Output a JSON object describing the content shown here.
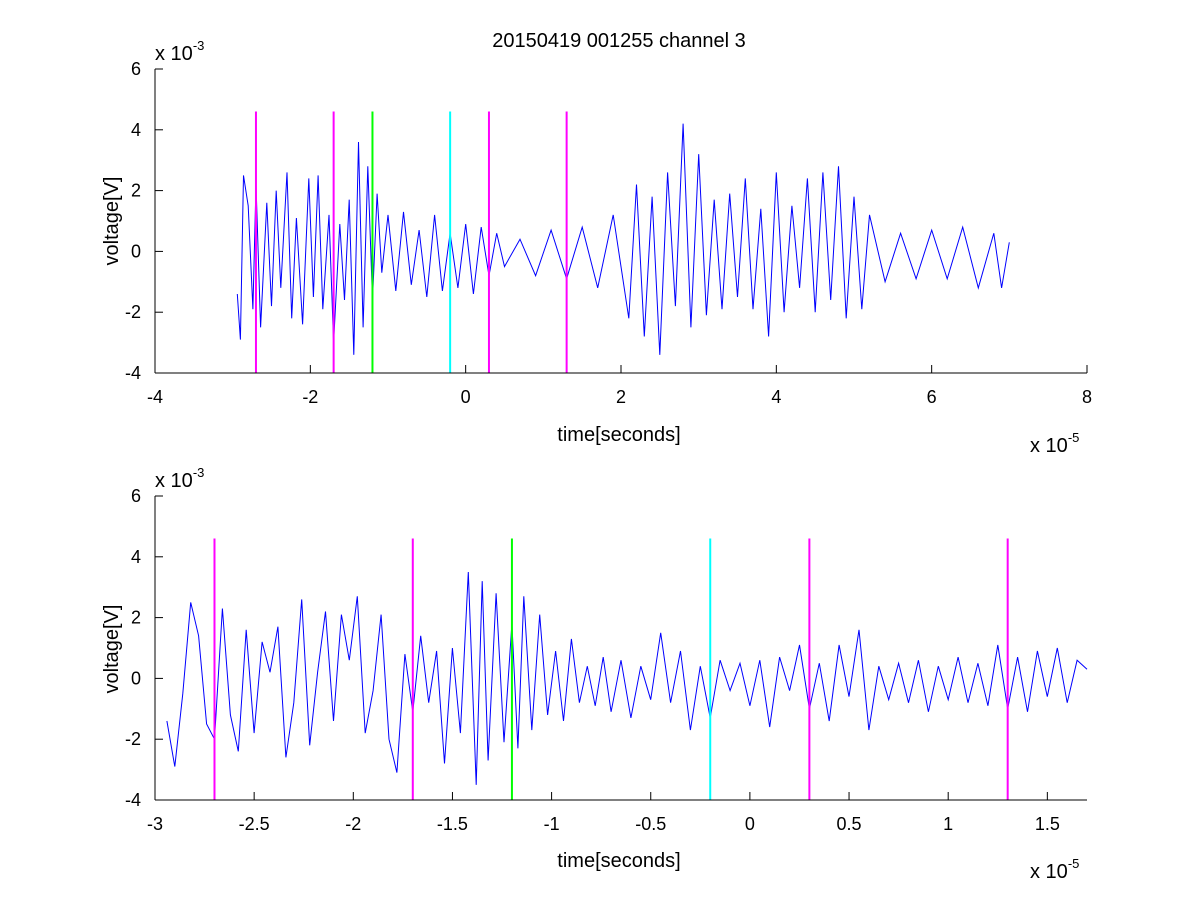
{
  "chart_data": [
    {
      "type": "line",
      "title": "20150419 001255 channel 3",
      "xlabel": "time[seconds]",
      "ylabel": "voltage[V]",
      "xlim": [
        -4e-05,
        8e-05
      ],
      "ylim": [
        -0.004,
        0.006
      ],
      "x_ticks": [
        -4e-05,
        -2e-05,
        0,
        2e-05,
        4e-05,
        6e-05,
        8e-05
      ],
      "x_tick_labels": [
        "-4",
        "-2",
        "0",
        "2",
        "4",
        "6",
        "8"
      ],
      "y_ticks": [
        -0.004,
        -0.002,
        0,
        0.002,
        0.004,
        0.006
      ],
      "y_tick_labels": [
        "-4",
        "-2",
        "0",
        "2",
        "4",
        "6"
      ],
      "x_exponent": {
        "base": "x 10",
        "power": "-5"
      },
      "y_exponent": {
        "base": "x 10",
        "power": "-3"
      },
      "grid": false,
      "series": [
        {
          "color": "#0000ff",
          "x_start": -2.94e-05,
          "x_end": 7e-05,
          "x": [
            -2.94e-05,
            -2.9e-05,
            -2.86e-05,
            -2.8e-05,
            -2.74e-05,
            -2.7e-05,
            -2.64e-05,
            -2.56e-05,
            -2.5e-05,
            -2.44e-05,
            -2.38e-05,
            -2.3e-05,
            -2.24e-05,
            -2.18e-05,
            -2.1e-05,
            -2.02e-05,
            -1.96e-05,
            -1.9e-05,
            -1.84e-05,
            -1.76e-05,
            -1.7e-05,
            -1.62e-05,
            -1.56e-05,
            -1.5e-05,
            -1.44e-05,
            -1.38e-05,
            -1.32e-05,
            -1.26e-05,
            -1.2e-05,
            -1.14e-05,
            -1.08e-05,
            -1e-05,
            -9e-06,
            -8e-06,
            -7e-06,
            -6e-06,
            -5e-06,
            -4e-06,
            -3e-06,
            -2e-06,
            -1e-06,
            0,
            1e-06,
            2e-06,
            3e-06,
            4e-06,
            5e-06,
            7e-06,
            9e-06,
            1.1e-05,
            1.3e-05,
            1.5e-05,
            1.7e-05,
            1.9e-05,
            2.1e-05,
            2.2e-05,
            2.3e-05,
            2.4e-05,
            2.5e-05,
            2.6e-05,
            2.7e-05,
            2.8e-05,
            2.9e-05,
            3e-05,
            3.1e-05,
            3.2e-05,
            3.3e-05,
            3.4e-05,
            3.5e-05,
            3.6e-05,
            3.7e-05,
            3.8e-05,
            3.9e-05,
            4e-05,
            4.1e-05,
            4.2e-05,
            4.3e-05,
            4.4e-05,
            4.5e-05,
            4.6e-05,
            4.7e-05,
            4.8e-05,
            4.9e-05,
            5e-05,
            5.1e-05,
            5.2e-05,
            5.4e-05,
            5.6e-05,
            5.8e-05,
            6e-05,
            6.2e-05,
            6.4e-05,
            6.6e-05,
            6.8e-05,
            6.9e-05,
            7e-05
          ],
          "y": [
            -0.0014,
            -0.0029,
            0.0025,
            0.0015,
            -0.0019,
            0.0022,
            -0.0025,
            0.0016,
            -0.0018,
            0.002,
            -0.0012,
            0.0026,
            -0.0022,
            0.0011,
            -0.0024,
            0.0024,
            -0.0015,
            0.0025,
            -0.0019,
            0.0012,
            -0.003,
            0.0009,
            -0.0016,
            0.0017,
            -0.0034,
            0.0036,
            -0.0025,
            0.0028,
            -0.0016,
            0.0019,
            -0.0007,
            0.0012,
            -0.0013,
            0.0013,
            -0.0011,
            0.0007,
            -0.0015,
            0.0012,
            -0.0013,
            0.0006,
            -0.0012,
            0.0009,
            -0.0014,
            0.0008,
            -0.0008,
            0.0006,
            -0.0005,
            0.0004,
            -0.0008,
            0.0007,
            -0.0009,
            0.0008,
            -0.0012,
            0.0012,
            -0.0022,
            0.0022,
            -0.0028,
            0.0018,
            -0.0034,
            0.0026,
            -0.0018,
            0.0042,
            -0.0025,
            0.0032,
            -0.0021,
            0.0017,
            -0.0019,
            0.0019,
            -0.0015,
            0.0024,
            -0.0019,
            0.0014,
            -0.0028,
            0.0026,
            -0.002,
            0.0015,
            -0.0012,
            0.0024,
            -0.002,
            0.0026,
            -0.0016,
            0.0028,
            -0.0022,
            0.0018,
            -0.0019,
            0.0012,
            -0.001,
            0.0006,
            -0.0009,
            0.0007,
            -0.0009,
            0.0008,
            -0.0012,
            0.0006,
            -0.0012,
            0.0003
          ]
        }
      ],
      "markers": [
        {
          "x": -2.7e-05,
          "color": "#ff00ff"
        },
        {
          "x": -1.7e-05,
          "color": "#ff00ff"
        },
        {
          "x": -1.2e-05,
          "color": "#00ff00"
        },
        {
          "x": -2e-06,
          "color": "#00ffff"
        },
        {
          "x": 3e-06,
          "color": "#ff00ff"
        },
        {
          "x": 1.3e-05,
          "color": "#ff00ff"
        }
      ],
      "marker_range": [
        -0.004,
        0.0046
      ]
    },
    {
      "type": "line",
      "xlabel": "time[seconds]",
      "ylabel": "voltage[V]",
      "xlim": [
        -3e-05,
        1.7e-05
      ],
      "ylim": [
        -0.004,
        0.006
      ],
      "x_ticks": [
        -3e-05,
        -2.5e-05,
        -2e-05,
        -1.5e-05,
        -1e-05,
        -5e-06,
        0,
        5e-06,
        1e-05,
        1.5e-05
      ],
      "x_tick_labels": [
        "-3",
        "-2.5",
        "-2",
        "-1.5",
        "-1",
        "-0.5",
        "0",
        "0.5",
        "1",
        "1.5"
      ],
      "y_ticks": [
        -0.004,
        -0.002,
        0,
        0.002,
        0.004,
        0.006
      ],
      "y_tick_labels": [
        "-4",
        "-2",
        "0",
        "2",
        "4",
        "6"
      ],
      "x_exponent": {
        "base": "x 10",
        "power": "-5"
      },
      "y_exponent": {
        "base": "x 10",
        "power": "-3"
      },
      "grid": false,
      "series": [
        {
          "color": "#0000ff",
          "x": [
            -2.94e-05,
            -2.9e-05,
            -2.86e-05,
            -2.82e-05,
            -2.78e-05,
            -2.74e-05,
            -2.7e-05,
            -2.66e-05,
            -2.62e-05,
            -2.58e-05,
            -2.54e-05,
            -2.5e-05,
            -2.46e-05,
            -2.42e-05,
            -2.38e-05,
            -2.34e-05,
            -2.3e-05,
            -2.26e-05,
            -2.22e-05,
            -2.18e-05,
            -2.14e-05,
            -2.1e-05,
            -2.06e-05,
            -2.02e-05,
            -1.98e-05,
            -1.94e-05,
            -1.9e-05,
            -1.86e-05,
            -1.82e-05,
            -1.78e-05,
            -1.74e-05,
            -1.7e-05,
            -1.66e-05,
            -1.62e-05,
            -1.58e-05,
            -1.54e-05,
            -1.5e-05,
            -1.46e-05,
            -1.42e-05,
            -1.38e-05,
            -1.35e-05,
            -1.32e-05,
            -1.28e-05,
            -1.24e-05,
            -1.2e-05,
            -1.17e-05,
            -1.14e-05,
            -1.1e-05,
            -1.06e-05,
            -1.02e-05,
            -9.8e-06,
            -9.4e-06,
            -9e-06,
            -8.6e-06,
            -8.2e-06,
            -7.8e-06,
            -7.4e-06,
            -7e-06,
            -6.5e-06,
            -6e-06,
            -5.5e-06,
            -5e-06,
            -4.5e-06,
            -4e-06,
            -3.5e-06,
            -3e-06,
            -2.5e-06,
            -2e-06,
            -1.5e-06,
            -1e-06,
            -5e-07,
            0,
            5e-07,
            1e-06,
            1.5e-06,
            2e-06,
            2.5e-06,
            3e-06,
            3.5e-06,
            4e-06,
            4.5e-06,
            5e-06,
            5.5e-06,
            6e-06,
            6.5e-06,
            7e-06,
            7.5e-06,
            8e-06,
            8.5e-06,
            9e-06,
            9.5e-06,
            1e-05,
            1.05e-05,
            1.1e-05,
            1.15e-05,
            1.2e-05,
            1.25e-05,
            1.3e-05,
            1.35e-05,
            1.4e-05,
            1.45e-05,
            1.5e-05,
            1.55e-05,
            1.6e-05,
            1.65e-05,
            1.7e-05
          ],
          "y": [
            -0.0014,
            -0.0029,
            -0.0005,
            0.0025,
            0.0014,
            -0.0015,
            -0.002,
            0.0023,
            -0.0012,
            -0.0024,
            0.0016,
            -0.0018,
            0.0012,
            0.0002,
            0.0017,
            -0.0026,
            -0.0008,
            0.0026,
            -0.0022,
            0.0002,
            0.0022,
            -0.0014,
            0.0021,
            0.0006,
            0.0027,
            -0.0018,
            -0.0004,
            0.0021,
            -0.002,
            -0.0031,
            0.0008,
            -0.0011,
            0.0014,
            -0.0008,
            0.0009,
            -0.0028,
            0.001,
            -0.0018,
            0.0035,
            -0.0035,
            0.0032,
            -0.0027,
            0.0028,
            -0.0021,
            0.0018,
            -0.0023,
            0.0027,
            -0.0017,
            0.0021,
            -0.0012,
            0.0009,
            -0.0014,
            0.0013,
            -0.0008,
            0.0004,
            -0.0009,
            0.0007,
            -0.0011,
            0.0006,
            -0.0013,
            0.0004,
            -0.0007,
            0.0015,
            -0.0008,
            0.0009,
            -0.0017,
            0.0004,
            -0.0013,
            0.0006,
            -0.0004,
            0.0005,
            -0.0009,
            0.0006,
            -0.0016,
            0.0007,
            -0.0004,
            0.0011,
            -0.001,
            0.0005,
            -0.0014,
            0.0011,
            -0.0006,
            0.0016,
            -0.0017,
            0.0004,
            -0.0007,
            0.0005,
            -0.0008,
            0.0006,
            -0.0011,
            0.0004,
            -0.0007,
            0.0007,
            -0.0008,
            0.0005,
            -0.0009,
            0.0011,
            -0.001,
            0.0007,
            -0.0011,
            0.0009,
            -0.0006,
            0.001,
            -0.0008,
            0.0006,
            0.0003
          ]
        }
      ],
      "markers": [
        {
          "x": -2.7e-05,
          "color": "#ff00ff"
        },
        {
          "x": -1.7e-05,
          "color": "#ff00ff"
        },
        {
          "x": -1.2e-05,
          "color": "#00ff00"
        },
        {
          "x": -2e-06,
          "color": "#00ffff"
        },
        {
          "x": 3e-06,
          "color": "#ff00ff"
        },
        {
          "x": 1.3e-05,
          "color": "#ff00ff"
        }
      ],
      "marker_range": [
        -0.004,
        0.0046
      ]
    }
  ]
}
